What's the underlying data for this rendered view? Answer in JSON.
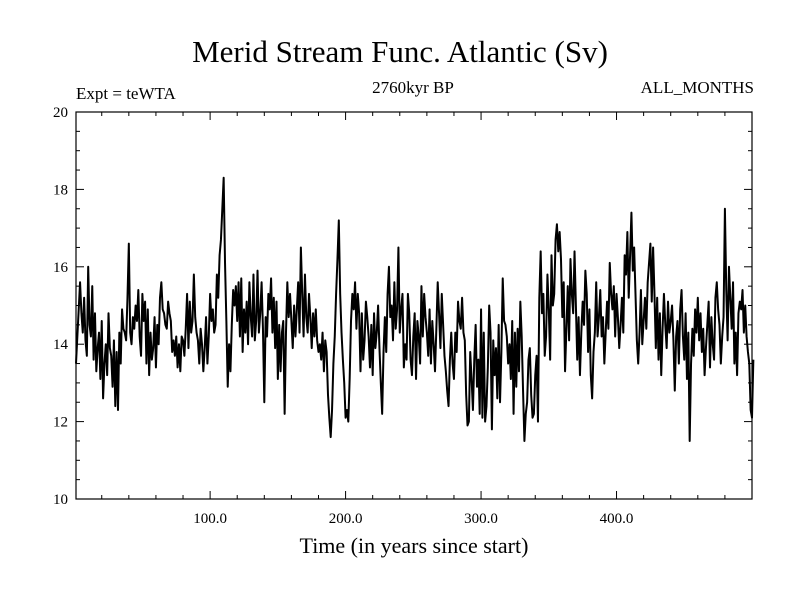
{
  "chart_data": {
    "type": "line",
    "title": "Merid Stream Func. Atlantic (Sv)",
    "left_label": "Expt = teWTA",
    "subtitle": "2760kyr BP",
    "right_label": "ALL_MONTHS",
    "xlabel": "Time (in years since start)",
    "ylabel": "",
    "xlim": [
      1,
      500
    ],
    "ylim": [
      10,
      20
    ],
    "x_ticks": [
      100,
      200,
      300,
      400
    ],
    "x_tick_labels": [
      "100.0",
      "200.0",
      "300.0",
      "400.0"
    ],
    "y_ticks": [
      10,
      12,
      14,
      16,
      18,
      20
    ],
    "y_tick_labels": [
      "10",
      "12",
      "14",
      "16",
      "18",
      "20"
    ],
    "grid": false,
    "series": [
      {
        "name": "Merid Stream Func. Atlantic",
        "x_start": 1,
        "x_step": 1,
        "values": [
          13.5,
          14.2,
          14.9,
          15.6,
          14.8,
          14.3,
          15.2,
          14.1,
          13.7,
          16.0,
          14.5,
          14.2,
          15.5,
          13.6,
          14.8,
          13.3,
          13.9,
          14.3,
          13.1,
          14.6,
          12.6,
          13.5,
          14.0,
          13.2,
          14.8,
          13.9,
          13.7,
          12.9,
          14.1,
          12.4,
          13.8,
          12.3,
          14.3,
          13.5,
          14.9,
          14.4,
          14.3,
          14.1,
          15.2,
          16.6,
          14.3,
          14.0,
          14.7,
          14.4,
          15.0,
          14.6,
          15.4,
          14.2,
          13.7,
          15.3,
          14.6,
          15.1,
          13.5,
          14.9,
          13.2,
          14.3,
          13.6,
          13.9,
          14.7,
          13.4,
          14.5,
          14.0,
          15.2,
          15.6,
          14.9,
          14.8,
          14.5,
          14.4,
          15.1,
          14.8,
          14.6,
          13.8,
          14.1,
          13.7,
          14.2,
          13.4,
          14.0,
          13.3,
          14.2,
          14.1,
          13.7,
          14.4,
          15.3,
          13.9,
          15.1,
          14.3,
          14.6,
          15.8,
          14.7,
          14.3,
          14.1,
          13.5,
          14.4,
          14.0,
          13.3,
          13.9,
          14.7,
          13.5,
          14.2,
          15.3,
          14.6,
          14.9,
          14.3,
          14.5,
          15.8,
          15.2,
          16.3,
          16.7,
          17.5,
          18.3,
          16.1,
          14.6,
          12.9,
          14.0,
          13.3,
          14.5,
          15.4,
          15.0,
          15.5,
          14.6,
          15.6,
          14.2,
          15.7,
          13.8,
          14.9,
          14.3,
          15.1,
          14.0,
          15.6,
          14.7,
          14.2,
          15.8,
          14.1,
          14.6,
          15.9,
          14.3,
          14.8,
          15.6,
          14.4,
          12.5,
          14.7,
          14.2,
          15.3,
          14.9,
          15.7,
          14.3,
          15.2,
          13.9,
          15.1,
          13.1,
          14.5,
          13.3,
          14.3,
          14.6,
          12.2,
          14.3,
          15.6,
          14.7,
          15.3,
          14.6,
          13.9,
          15.0,
          14.2,
          14.9,
          15.6,
          14.3,
          16.5,
          15.3,
          14.2,
          15.8,
          14.7,
          14.3,
          15.3,
          14.7,
          13.9,
          14.8,
          14.2,
          14.9,
          14.1,
          13.8,
          14.0,
          13.6,
          14.3,
          13.3,
          14.1,
          13.8,
          12.7,
          12.1,
          11.6,
          12.3,
          13.5,
          14.2,
          15.3,
          16.2,
          17.2,
          15.3,
          14.3,
          13.6,
          13.0,
          12.1,
          12.3,
          12.0,
          13.1,
          14.6,
          15.3,
          14.9,
          15.6,
          14.4,
          15.3,
          14.8,
          13.3,
          14.8,
          13.6,
          14.1,
          15.1,
          14.7,
          14.2,
          13.4,
          14.5,
          13.2,
          14.8,
          13.9,
          14.3,
          15.0,
          13.9,
          13.0,
          12.2,
          13.8,
          14.7,
          13.8,
          15.3,
          16.0,
          14.7,
          15.0,
          14.1,
          15.6,
          14.4,
          14.9,
          16.5,
          14.3,
          14.9,
          15.3,
          13.4,
          14.0,
          13.6,
          15.3,
          14.8,
          13.6,
          13.2,
          14.2,
          14.8,
          13.1,
          14.6,
          14.2,
          13.5,
          15.5,
          14.2,
          15.3,
          14.7,
          14.3,
          13.7,
          14.9,
          13.5,
          14.6,
          14.0,
          13.3,
          14.4,
          15.6,
          14.8,
          13.9,
          15.3,
          14.5,
          13.7,
          13.3,
          12.8,
          12.4,
          13.6,
          14.3,
          13.5,
          13.1,
          14.3,
          13.8,
          15.1,
          14.6,
          14.4,
          15.2,
          14.3,
          14.1,
          12.7,
          11.9,
          12.0,
          13.8,
          13.1,
          12.3,
          13.6,
          14.5,
          12.9,
          13.6,
          12.2,
          14.9,
          12.1,
          14.3,
          12.0,
          12.4,
          13.4,
          15.0,
          14.3,
          11.8,
          14.1,
          13.2,
          13.9,
          12.6,
          14.5,
          12.5,
          13.8,
          15.7,
          14.6,
          14.5,
          14.2,
          13.5,
          14.0,
          13.1,
          14.6,
          12.2,
          14.3,
          12.9,
          14.4,
          13.3,
          15.1,
          14.2,
          12.8,
          11.5,
          12.2,
          12.5,
          13.6,
          13.9,
          12.7,
          12.1,
          12.2,
          13.2,
          13.7,
          12.0,
          15.2,
          16.4,
          14.8,
          15.3,
          13.7,
          14.2,
          15.8,
          14.9,
          13.6,
          16.3,
          15.0,
          15.3,
          16.7,
          17.1,
          16.4,
          16.9,
          16.2,
          14.7,
          15.6,
          13.3,
          14.4,
          15.5,
          14.1,
          16.2,
          15.3,
          14.8,
          16.4,
          15.0,
          13.6,
          14.7,
          13.2,
          14.3,
          15.1,
          14.5,
          15.9,
          15.3,
          13.8,
          14.9,
          13.2,
          12.6,
          13.8,
          14.3,
          15.6,
          14.2,
          14.7,
          15.4,
          14.2,
          14.7,
          13.5,
          14.3,
          15.1,
          14.4,
          16.1,
          15.3,
          14.9,
          15.5,
          14.2,
          15.3,
          14.7,
          13.9,
          14.5,
          15.2,
          14.3,
          16.3,
          15.8,
          16.9,
          15.2,
          16.3,
          17.4,
          15.9,
          16.5,
          15.3,
          14.1,
          13.5,
          14.3,
          15.4,
          14.0,
          14.6,
          15.2,
          14.4,
          15.6,
          16.1,
          16.6,
          15.1,
          16.5,
          15.3,
          13.9,
          15.2,
          13.6,
          14.8,
          13.2,
          14.4,
          15.3,
          14.5,
          13.9,
          15.1,
          14.3,
          14.6,
          15.0,
          14.1,
          12.8,
          14.2,
          14.6,
          13.5,
          14.9,
          15.4,
          14.2,
          13.6,
          14.8,
          13.1,
          14.3,
          11.5,
          13.5,
          14.4,
          13.7,
          14.9,
          14.3,
          15.2,
          14.1,
          14.8,
          13.8,
          14.4,
          13.2,
          13.9,
          14.5,
          15.1,
          13.4,
          14.7,
          14.0,
          13.6,
          15.2,
          15.6,
          14.9,
          14.5,
          13.5,
          14.2,
          14.7,
          17.5,
          15.4,
          14.1,
          16.0,
          15.2,
          14.4,
          15.6,
          13.5,
          14.3,
          13.2,
          14.8,
          15.1,
          14.9,
          15.4,
          14.3,
          15.0,
          14.2,
          13.8,
          13.5,
          12.3,
          12.1,
          13.6
        ]
      }
    ]
  }
}
